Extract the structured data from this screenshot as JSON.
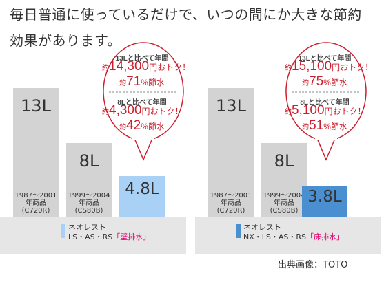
{
  "headline": {
    "line1": "毎日普通に使っているだけで、いつの間にか大きな節約",
    "line2": "効果があります。"
  },
  "chart_data": [
    {
      "type": "bar",
      "title": "",
      "categories": [
        "1987〜2001 年商品 (C720R)",
        "1999〜2004 年商品 (CS80B)",
        "ネオレスト LS・AS・RS「壁排水」"
      ],
      "values": [
        13,
        8,
        4.8
      ],
      "unit": "L",
      "value_labels": [
        "13L",
        "8L",
        "4.8L"
      ],
      "bar_notes": [
        [
          "1987〜2001",
          "年商品",
          "(C720R)"
        ],
        [
          "1999〜2004",
          "年商品",
          "(CS80B)"
        ],
        []
      ],
      "legend": {
        "line1": "ネオレスト",
        "line2_prefix": "LS・AS・RS",
        "line2_highlight": "「壁排水」",
        "color": "#a9d1f5"
      },
      "colors": [
        "#d3d3d3",
        "#d3d3d3",
        "#a9d1f5"
      ],
      "callout": {
        "h1": "13Lと比べて年間",
        "a1_pre": "約",
        "a1_num": "14,300",
        "a1_post": "円おトク！",
        "p1_pre": "約",
        "p1_num": "71",
        "p1_post": "%節水",
        "h2": "8Lと比べて年間",
        "a2_pre": "約",
        "a2_num": "4,300",
        "a2_post": "円おトク！",
        "p2_pre": "約",
        "p2_num": "42",
        "p2_post": "%節水"
      }
    },
    {
      "type": "bar",
      "title": "",
      "categories": [
        "1987〜2001 年商品 (C720R)",
        "1999〜2004 年商品 (CS80B)",
        "ネオレスト NX・LS・AS・RS「床排水」"
      ],
      "values": [
        13,
        8,
        3.8
      ],
      "unit": "L",
      "value_labels": [
        "13L",
        "8L",
        "3.8L"
      ],
      "bar_notes": [
        [
          "1987〜2001",
          "年商品",
          "(C720R)"
        ],
        [
          "1999〜2004",
          "年商品",
          "(CS80B)"
        ],
        []
      ],
      "legend": {
        "line1": "ネオレスト",
        "line2_prefix": "NX・LS・AS・RS",
        "line2_highlight": "「床排水」",
        "color": "#4a8fd0"
      },
      "colors": [
        "#d3d3d3",
        "#d3d3d3",
        "#4a8fd0"
      ],
      "callout": {
        "h1": "13Lと比べて年間",
        "a1_pre": "約",
        "a1_num": "15,100",
        "a1_post": "円おトク！",
        "p1_pre": "約",
        "p1_num": "75",
        "p1_post": "%節水",
        "h2": "8Lと比べて年間",
        "a2_pre": "約",
        "a2_num": "5,100",
        "a2_post": "円おトク！",
        "p2_pre": "約",
        "p2_num": "51",
        "p2_post": "%節水"
      }
    }
  ],
  "credit": "出典画像：TOTO",
  "accent_red": "#cc1e2c"
}
